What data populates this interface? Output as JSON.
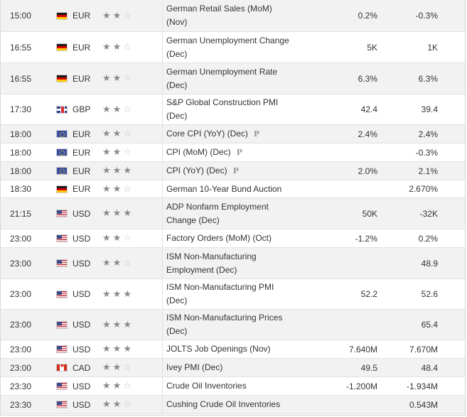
{
  "events": [
    {
      "time": "15:00",
      "flag": "de",
      "currency": "EUR",
      "stars": 2,
      "event": "German Retail Sales (MoM)",
      "period": "(Nov)",
      "prelim": "",
      "actual": "0.2%",
      "forecast": "-0.3%",
      "top": 0,
      "height": 44,
      "alt": true
    },
    {
      "time": "16:55",
      "flag": "de",
      "currency": "EUR",
      "stars": 2,
      "event": "German Unemployment Change",
      "period": "(Dec)",
      "prelim": "",
      "actual": "5K",
      "forecast": "1K"
    },
    {
      "time": "16:55",
      "flag": "de",
      "currency": "EUR",
      "stars": 2,
      "event": "German Unemployment Rate",
      "period": "(Dec)",
      "prelim": "",
      "actual": "6.3%",
      "forecast": "6.3%"
    },
    {
      "time": "17:30",
      "flag": "gb",
      "currency": "GBP",
      "stars": 2,
      "event": "S&P Global Construction PMI",
      "period": "(Dec)",
      "prelim": "",
      "actual": "42.4",
      "forecast": "39.4"
    },
    {
      "time": "18:00",
      "flag": "eu",
      "currency": "EUR",
      "stars": 2,
      "event": "Core CPI (YoY) (Dec)",
      "period": "",
      "prelim": "P",
      "actual": "2.4%",
      "forecast": "2.4%"
    },
    {
      "time": "18:00",
      "flag": "eu",
      "currency": "EUR",
      "stars": 2,
      "event": "CPI (MoM) (Dec)",
      "period": "",
      "prelim": "P",
      "actual": "",
      "forecast": "-0.3%"
    },
    {
      "time": "18:00",
      "flag": "eu",
      "currency": "EUR",
      "stars": 3,
      "event": "CPI (YoY) (Dec)",
      "period": "",
      "prelim": "P",
      "actual": "2.0%",
      "forecast": "2.1%"
    },
    {
      "time": "18:30",
      "flag": "de",
      "currency": "EUR",
      "stars": 2,
      "event": "German 10-Year Bund Auction",
      "period": "",
      "prelim": "",
      "actual": "",
      "forecast": "2.670%"
    },
    {
      "time": "21:15",
      "flag": "us",
      "currency": "USD",
      "stars": 3,
      "event": "ADP Nonfarm Employment",
      "period": "Change (Dec)",
      "prelim": "",
      "actual": "50K",
      "forecast": "-32K"
    },
    {
      "time": "23:00",
      "flag": "us",
      "currency": "USD",
      "stars": 2,
      "event": "Factory Orders (MoM) (Oct)",
      "period": "",
      "prelim": "",
      "actual": "-1.2%",
      "forecast": "0.2%"
    },
    {
      "time": "23:00",
      "flag": "us",
      "currency": "USD",
      "stars": 2,
      "event": "ISM Non-Manufacturing",
      "period": "Employment (Dec)",
      "prelim": "",
      "actual": "",
      "forecast": "48.9"
    },
    {
      "time": "23:00",
      "flag": "us",
      "currency": "USD",
      "stars": 3,
      "event": "ISM Non-Manufacturing PMI",
      "period": "(Dec)",
      "prelim": "",
      "actual": "52.2",
      "forecast": "52.6"
    },
    {
      "time": "23:00",
      "flag": "us",
      "currency": "USD",
      "stars": 3,
      "event": "ISM Non-Manufacturing Prices",
      "period": "(Dec)",
      "prelim": "",
      "actual": "",
      "forecast": "65.4"
    },
    {
      "time": "23:00",
      "flag": "us",
      "currency": "USD",
      "stars": 3,
      "event": "JOLTS Job Openings (Nov)",
      "period": "",
      "prelim": "",
      "actual": "7.640M",
      "forecast": "7.670M"
    },
    {
      "time": "23:00",
      "flag": "ca",
      "currency": "CAD",
      "stars": 2,
      "event": "Ivey PMI (Dec)",
      "period": "",
      "prelim": "",
      "actual": "49.5",
      "forecast": "48.4"
    },
    {
      "time": "23:30",
      "flag": "us",
      "currency": "USD",
      "stars": 2,
      "event": "Crude Oil Inventories",
      "period": "",
      "prelim": "",
      "actual": "-1.200M",
      "forecast": "-1.934M"
    },
    {
      "time": "23:30",
      "flag": "us",
      "currency": "USD",
      "stars": 2,
      "event": "Cushing Crude Oil Inventories",
      "period": "",
      "prelim": "",
      "actual": "",
      "forecast": "0.543M"
    }
  ]
}
